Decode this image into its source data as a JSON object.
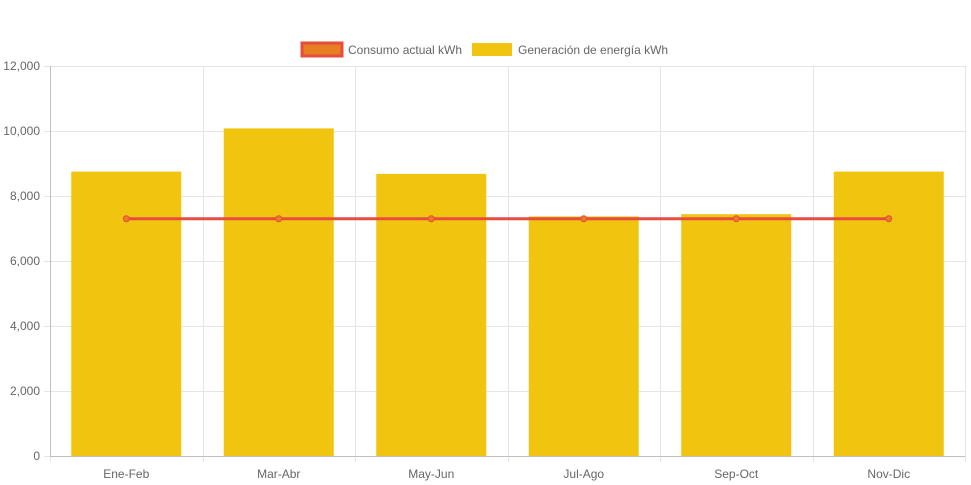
{
  "chart_data": {
    "type": "bar",
    "categories": [
      "Ene-Feb",
      "Mar-Abr",
      "May-Jun",
      "Jul-Ago",
      "Sep-Oct",
      "Nov-Dic"
    ],
    "series": [
      {
        "name": "Consumo actual kWh",
        "type": "line",
        "values": [
          7300,
          7300,
          7300,
          7300,
          7300,
          7300
        ],
        "color": "#e74c3c",
        "fill": "#e67e22"
      },
      {
        "name": "Generación de energía kWh",
        "type": "bar",
        "values": [
          8750,
          10080,
          8680,
          7370,
          7440,
          8750
        ],
        "color": "#f1c40f"
      }
    ],
    "ylim": [
      0,
      12000
    ],
    "yticks": [
      0,
      2000,
      4000,
      6000,
      8000,
      10000,
      12000
    ],
    "ytick_labels": [
      "0",
      "2,000",
      "4,000",
      "6,000",
      "8,000",
      "10,000",
      "12,000"
    ],
    "grid": true,
    "legend_position": "top-center",
    "title": "",
    "xlabel": "",
    "ylabel": ""
  }
}
